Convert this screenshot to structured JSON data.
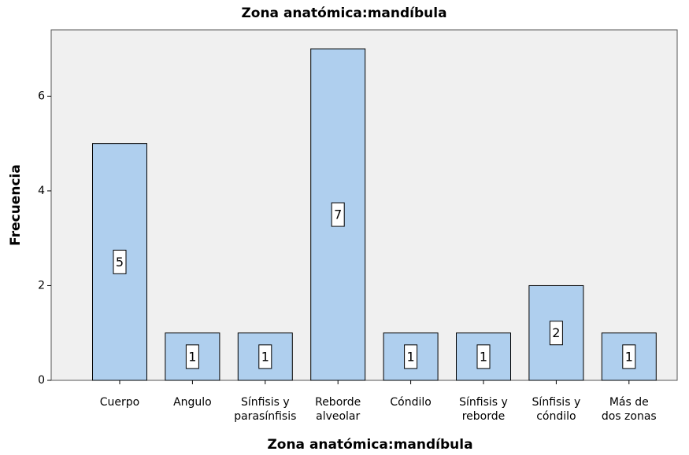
{
  "chart_data": {
    "type": "bar",
    "title": "Zona anatómica:mandíbula",
    "x_label": "Zona anatómica:mandíbula",
    "y_label": "Frecuencia",
    "categories": [
      [
        "Cuerpo"
      ],
      [
        "Angulo"
      ],
      [
        "Sínfisis y",
        "parasínfisis"
      ],
      [
        "Reborde",
        "alveolar"
      ],
      [
        "Cóndilo"
      ],
      [
        "Sínfisis y",
        "reborde"
      ],
      [
        "Sínfisis y",
        "cóndilo"
      ],
      [
        "Más de",
        "dos zonas"
      ]
    ],
    "values": [
      5,
      1,
      1,
      7,
      1,
      1,
      2,
      1
    ],
    "color": "#afcfee",
    "ylim": [
      0,
      7.4
    ],
    "yticks": [
      0,
      2,
      4,
      6
    ],
    "grid": false
  }
}
